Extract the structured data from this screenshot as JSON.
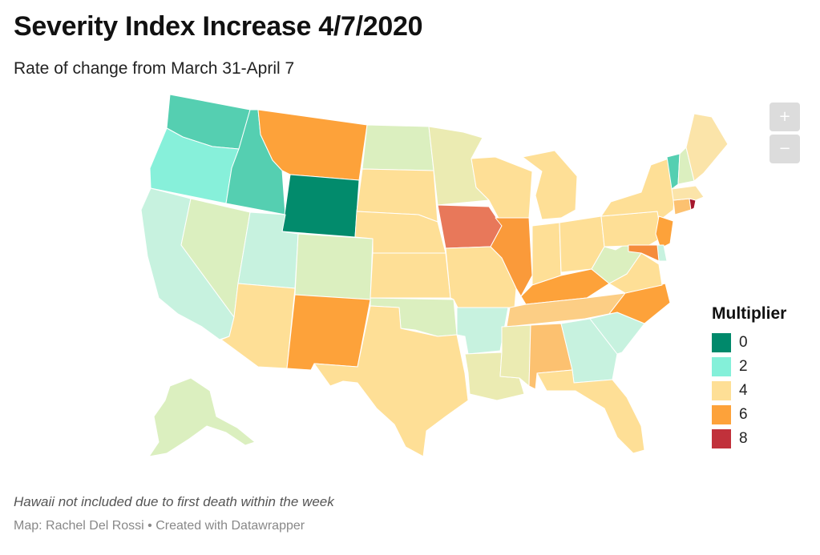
{
  "header": {
    "title": "Severity Index Increase 4/7/2020",
    "subtitle": "Rate of change from March 31-April 7"
  },
  "zoom": {
    "in_label": "+",
    "out_label": "−"
  },
  "legend": {
    "title": "Multiplier",
    "items": [
      {
        "label": "0",
        "color": "#00896b"
      },
      {
        "label": "2",
        "color": "#84f0d9"
      },
      {
        "label": "4",
        "color": "#fedf96"
      },
      {
        "label": "6",
        "color": "#fda23a"
      },
      {
        "label": "8",
        "color": "#c1313b"
      }
    ]
  },
  "palette": {
    "WY": "#028b6c",
    "WA": "#55cfb1",
    "ID": "#55cfb1",
    "OR": "#87f0da",
    "VT": "#55cfb1",
    "CA": "#c7f2df",
    "UT": "#c7f2df",
    "AR": "#c7f2df",
    "GA": "#c7f2df",
    "SC": "#c7f2df",
    "DE": "#c7f2df",
    "NV": "#dbefbf",
    "CO": "#dbefbf",
    "ND": "#dbefbf",
    "OK": "#dbefbf",
    "WV": "#dbefbf",
    "AK": "#dbefbf",
    "NH": "#dbefbf",
    "LA": "#ebebb2",
    "MS": "#ebebb2",
    "MN": "#ebebb2",
    "ME": "#fbe4a9",
    "MA": "#fbe4a9",
    "CT_alt": "#fbe4a9",
    "AZ": "#fedf96",
    "TX": "#fedf96",
    "KS": "#fedf96",
    "NE": "#fedf96",
    "SD": "#fedf96",
    "MO": "#fedf96",
    "WI": "#fedf96",
    "MI": "#fedf96",
    "IN": "#fedf96",
    "OH": "#fedf96",
    "PA": "#fedf96",
    "NY": "#fedf96",
    "VA": "#fedf96",
    "FL": "#fedf96",
    "TN": "#fcce85",
    "AL": "#fcc170",
    "CT": "#fcc170",
    "MT": "#fda23a",
    "NM": "#fda23a",
    "KY": "#fda23a",
    "NC": "#fda23a",
    "NJ": "#fda23a",
    "IL": "#fa9a3a",
    "MD": "#f58c3c",
    "IA": "#e8785a",
    "RI": "#a5172c"
  },
  "footer": {
    "note": "Hawaii not included due to first death within the week",
    "byline": "Map: Rachel Del Rossi • Created with Datawrapper"
  }
}
